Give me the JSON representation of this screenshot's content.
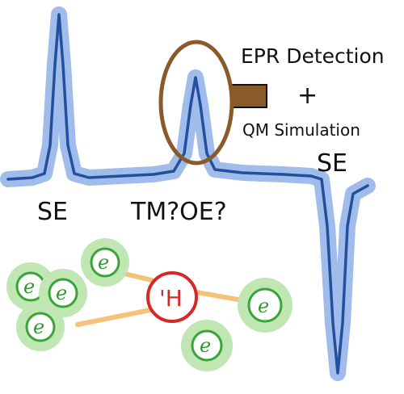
{
  "labels": {
    "epr_detection": "EPR Detection",
    "plus": "+",
    "qm_simulation": "QM Simulation",
    "se_right": "SE",
    "se_left": "SE",
    "tm_oe": "TM?OE?"
  },
  "nucleus": {
    "letter": "'H"
  },
  "electrons": [
    {
      "letter": "e"
    },
    {
      "letter": "e"
    },
    {
      "letter": "e"
    },
    {
      "letter": "e"
    },
    {
      "letter": "e"
    },
    {
      "letter": "e"
    }
  ],
  "colors": {
    "trace": "#244f9e",
    "trace_glow": "#8fb0e6",
    "magnifier": "#8a5a2b",
    "electron_ring": "#39a539",
    "electron_glow": "#bfe6b3",
    "nucleus_ring": "#d62828",
    "bond": "#f5c27a"
  }
}
